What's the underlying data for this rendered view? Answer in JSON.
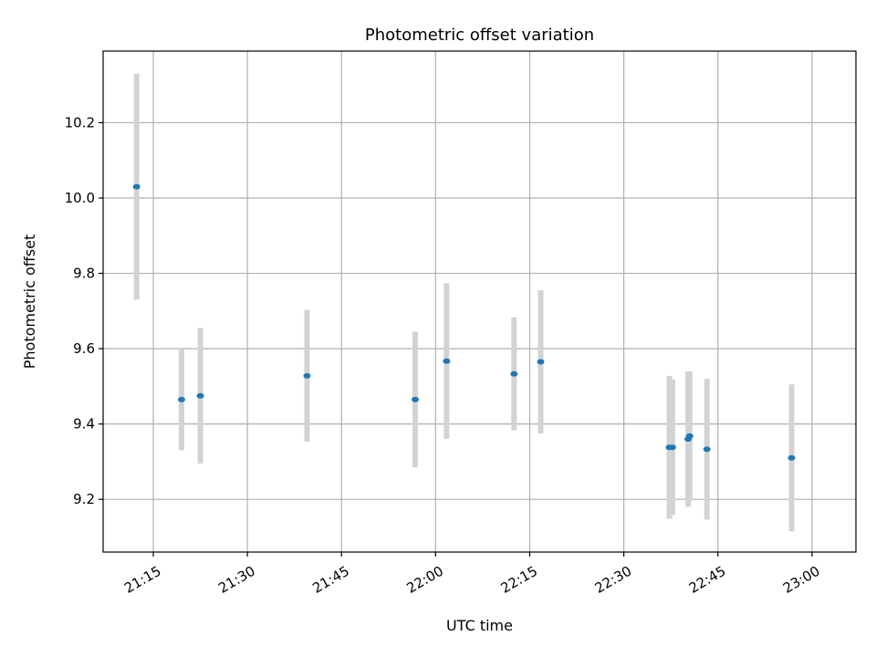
{
  "chart_data": {
    "type": "scatter",
    "title": "Photometric offset variation",
    "xlabel": "UTC time",
    "ylabel": "Photometric offset",
    "x_axis_kind": "time",
    "xlim": [
      "21:07",
      "23:07"
    ],
    "ylim": [
      9.06,
      10.39
    ],
    "grid": true,
    "xticks": [
      "21:15",
      "21:30",
      "21:45",
      "22:00",
      "22:15",
      "22:30",
      "22:45",
      "23:00"
    ],
    "yticks": [
      9.2,
      9.4,
      9.6,
      9.8,
      10.0,
      10.2
    ],
    "ytick_labels": [
      "9.2",
      "9.4",
      "9.6",
      "9.8",
      "10.0",
      "10.2"
    ],
    "marker_color": "#1f77b4",
    "errorbar_color": "#d3d3d3",
    "points": [
      {
        "x": "21:12:20",
        "y": 10.03,
        "err": 0.3
      },
      {
        "x": "21:19:30",
        "y": 9.465,
        "err": 0.135
      },
      {
        "x": "21:22:30",
        "y": 9.475,
        "err": 0.18
      },
      {
        "x": "21:39:30",
        "y": 9.528,
        "err": 0.175
      },
      {
        "x": "21:56:45",
        "y": 9.465,
        "err": 0.18
      },
      {
        "x": "22:01:45",
        "y": 9.567,
        "err": 0.207
      },
      {
        "x": "22:12:30",
        "y": 9.533,
        "err": 0.15
      },
      {
        "x": "22:16:45",
        "y": 9.565,
        "err": 0.19
      },
      {
        "x": "22:37:15",
        "y": 9.338,
        "err": 0.19
      },
      {
        "x": "22:37:45",
        "y": 9.338,
        "err": 0.18
      },
      {
        "x": "22:40:15",
        "y": 9.36,
        "err": 0.18
      },
      {
        "x": "22:40:30",
        "y": 9.368,
        "err": 0.172
      },
      {
        "x": "22:43:15",
        "y": 9.333,
        "err": 0.187
      },
      {
        "x": "22:56:45",
        "y": 9.31,
        "err": 0.195
      }
    ]
  }
}
